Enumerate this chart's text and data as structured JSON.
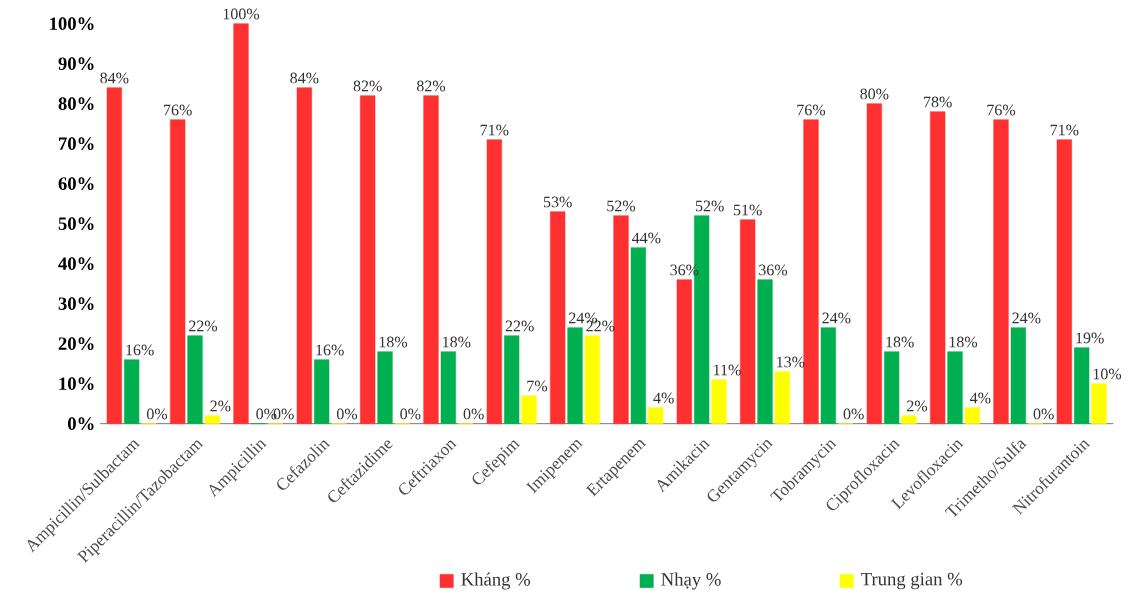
{
  "chart_data": {
    "type": "bar",
    "categories": [
      "Ampicillin/Sulbactam",
      "Piperacillin/Tazobactam",
      "Ampicillin",
      "Cefazolin",
      "Ceftazidime",
      "Ceftriaxon",
      "Cefepim",
      "Imipenem",
      "Ertapenem",
      "Amikacin",
      "Gentamycin",
      "Tobramycin",
      "Ciprofloxacin",
      "Levofloxacin",
      "Trimetho/Sulfa",
      "Nitrofurantoin"
    ],
    "series": [
      {
        "name": "Kháng %",
        "color": "#ff3030",
        "values": [
          84,
          76,
          100,
          84,
          82,
          82,
          71,
          53,
          52,
          36,
          51,
          76,
          80,
          78,
          76,
          71
        ],
        "value_labels": [
          "84%",
          "76%",
          "100%",
          "84%",
          "82%",
          "82%",
          "71%",
          "53%",
          "52%",
          "36%",
          "51%",
          "76%",
          "80%",
          "78%",
          "76%",
          "71%"
        ]
      },
      {
        "name": "Nhạy %",
        "color": "#00b050",
        "values": [
          16,
          22,
          0,
          16,
          18,
          18,
          22,
          24,
          44,
          52,
          36,
          24,
          18,
          18,
          24,
          19
        ],
        "value_labels": [
          "16%",
          "22%",
          "0%",
          "16%",
          "18%",
          "18%",
          "22%",
          "24%",
          "44%",
          "52%",
          "36%",
          "24%",
          "18%",
          "18%",
          "24%",
          "19%"
        ]
      },
      {
        "name": "Trung gian %",
        "color": "#ffff00",
        "values": [
          0,
          2,
          0,
          0,
          0,
          0,
          7,
          22,
          4,
          11,
          13,
          0,
          2,
          4,
          0,
          10
        ],
        "value_labels": [
          "0%",
          "2%",
          "0%",
          "0%",
          "0%",
          "0%",
          "7%",
          "22%",
          "4%",
          "11%",
          "13%",
          "0%",
          "2%",
          "4%",
          "0%",
          "10%"
        ]
      }
    ],
    "ylim": [
      0,
      100
    ],
    "yticks": [
      {
        "value": 0,
        "label": "0%"
      },
      {
        "value": 10,
        "label": "10%"
      },
      {
        "value": 20,
        "label": "20%"
      },
      {
        "value": 30,
        "label": "30%"
      },
      {
        "value": 40,
        "label": "40%"
      },
      {
        "value": 50,
        "label": "50%"
      },
      {
        "value": 60,
        "label": "60%"
      },
      {
        "value": 70,
        "label": "70%"
      },
      {
        "value": 80,
        "label": "80%"
      },
      {
        "value": 90,
        "label": "90%"
      },
      {
        "value": 100,
        "label": "100%"
      }
    ],
    "legend": "bottom",
    "grid": false
  }
}
